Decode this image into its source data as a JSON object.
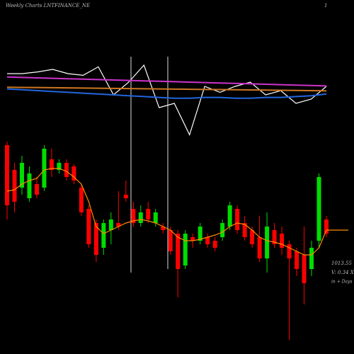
{
  "chart_data": [
    {
      "type": "line",
      "title": "Weekly Charts LNTFINANCE_NE",
      "label": "1",
      "ylim": [
        0,
        100
      ],
      "series": [
        {
          "name": "price",
          "color": "#ffffff",
          "values": [
            80,
            80,
            82,
            85,
            80,
            78,
            88,
            55,
            70,
            90,
            40,
            45,
            8,
            65,
            58,
            65,
            70,
            55,
            60,
            45,
            50,
            65
          ]
        },
        {
          "name": "ma-long",
          "color": "#cc33cc",
          "values": [
            76,
            75.5,
            75,
            74.5,
            74,
            73.5,
            73,
            72.5,
            72,
            71.5,
            71,
            70.5,
            70,
            69.5,
            69,
            68.5,
            68,
            67.5,
            67,
            66.5,
            66,
            65.5
          ]
        },
        {
          "name": "ma-mid",
          "color": "#cc7722",
          "values": [
            64,
            63.8,
            63.6,
            63.4,
            63.2,
            63,
            62.8,
            62.6,
            62.4,
            62.2,
            62,
            61.8,
            61.6,
            61.4,
            61.2,
            61,
            60.8,
            60.6,
            60.4,
            60.2,
            60,
            59.8
          ]
        },
        {
          "name": "ma-short",
          "color": "#2266dd",
          "values": [
            62,
            61,
            60,
            59,
            58,
            57,
            56,
            55,
            54,
            53,
            52,
            51,
            51,
            52,
            52,
            51,
            51,
            52,
            52,
            53,
            54,
            56
          ]
        }
      ]
    },
    {
      "type": "candlestick",
      "ylim": [
        0,
        300
      ],
      "up_color": "#00dd00",
      "down_color": "#ff0000",
      "ma_color": "#ff8c00",
      "open": [
        295,
        260,
        235,
        220,
        240,
        235,
        275,
        260,
        270,
        265,
        235,
        205,
        185,
        150,
        175,
        185,
        225,
        205,
        185,
        205,
        185,
        180,
        175,
        170,
        125,
        165,
        160,
        165,
        160,
        165,
        180,
        205,
        185,
        175,
        165,
        135,
        175,
        170,
        155,
        145,
        140,
        120,
        160,
        190
      ],
      "high": [
        300,
        270,
        280,
        265,
        250,
        295,
        290,
        275,
        275,
        268,
        240,
        210,
        190,
        190,
        200,
        230,
        245,
        215,
        210,
        215,
        205,
        185,
        180,
        175,
        175,
        170,
        185,
        170,
        165,
        190,
        215,
        210,
        195,
        180,
        195,
        200,
        185,
        180,
        160,
        150,
        180,
        160,
        255,
        195
      ],
      "low": [
        190,
        200,
        225,
        215,
        220,
        230,
        250,
        255,
        245,
        240,
        195,
        150,
        130,
        140,
        155,
        175,
        215,
        180,
        180,
        185,
        180,
        170,
        140,
        80,
        120,
        150,
        155,
        150,
        145,
        160,
        175,
        170,
        160,
        150,
        130,
        115,
        150,
        140,
        20,
        110,
        70,
        110,
        150,
        165
      ],
      "close": [
        210,
        215,
        270,
        255,
        225,
        290,
        260,
        270,
        250,
        245,
        200,
        155,
        140,
        185,
        190,
        180,
        220,
        185,
        200,
        190,
        200,
        175,
        145,
        120,
        170,
        160,
        180,
        155,
        150,
        185,
        210,
        175,
        165,
        155,
        135,
        180,
        155,
        150,
        135,
        120,
        100,
        150,
        250,
        170
      ],
      "ma": [
        230,
        232,
        240,
        245,
        248,
        260,
        262,
        262,
        258,
        250,
        240,
        215,
        180,
        170,
        175,
        180,
        185,
        188,
        190,
        188,
        185,
        180,
        175,
        165,
        160,
        160,
        162,
        165,
        168,
        172,
        180,
        185,
        183,
        175,
        165,
        160,
        158,
        155,
        150,
        145,
        140,
        140,
        150,
        175
      ],
      "labels": [
        "1013.55",
        "V: 0.34 X",
        "in + Days"
      ]
    }
  ]
}
